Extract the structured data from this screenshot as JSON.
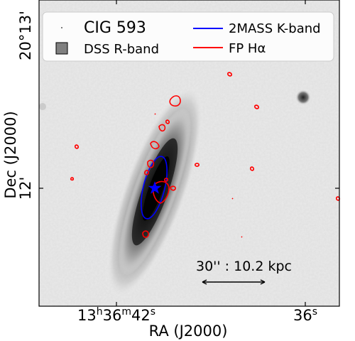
{
  "figure": {
    "legend": {
      "object_name": "CIG 593",
      "dss_label": "DSS R-band",
      "twomass_label": "2MASS K-band",
      "fp_label": "FP Hα"
    },
    "axes": {
      "xlabel": "RA (J2000)",
      "ylabel": "Dec (J2000)",
      "x_ticks": [
        "13h36m42s",
        "36s"
      ],
      "y_ticks": [
        "20°13'",
        "12'"
      ]
    },
    "scale_bar": {
      "label": "30'' : 10.2 kpc"
    },
    "colors": {
      "twomass_contour": "#0000ff",
      "fp_contour": "#ff0000",
      "galaxy_center_marker": "#0000ff",
      "dss_legend_patch": "#808080"
    },
    "icons": {
      "center_marker": "star-icon",
      "dss_patch": "square-icon"
    }
  }
}
